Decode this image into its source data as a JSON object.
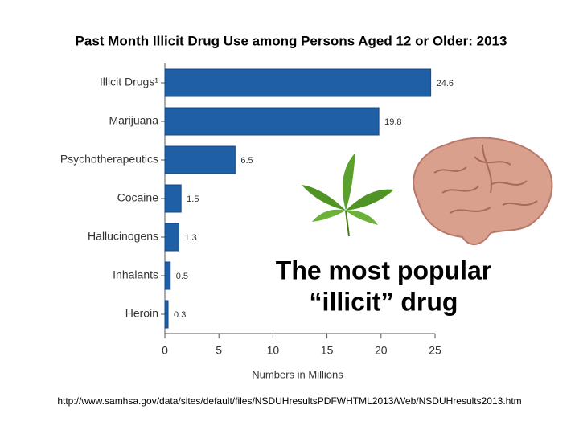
{
  "chart_data": {
    "type": "hbar",
    "title": "Past Month Illicit Drug Use among Persons Aged 12 or Older: 2013",
    "categories": [
      "Illicit Drugs¹",
      "Marijuana",
      "Psychotherapeutics",
      "Cocaine",
      "Hallucinogens",
      "Inhalants",
      "Heroin"
    ],
    "values": [
      24.6,
      19.8,
      6.5,
      1.5,
      1.3,
      0.5,
      0.3
    ],
    "color": "#1f5fa6",
    "xlim": [
      0,
      25
    ],
    "xticks": [
      0,
      5,
      10,
      15,
      20,
      25
    ],
    "xlabel": "Numbers in Millions",
    "annotations": [
      "The most popular",
      "“illicit” drug"
    ],
    "source": "http://www.samhsa.gov/data/sites/default/files/NSDUHresultsPDFWHTML2013/Web/NSDUHresults2013.htm"
  }
}
